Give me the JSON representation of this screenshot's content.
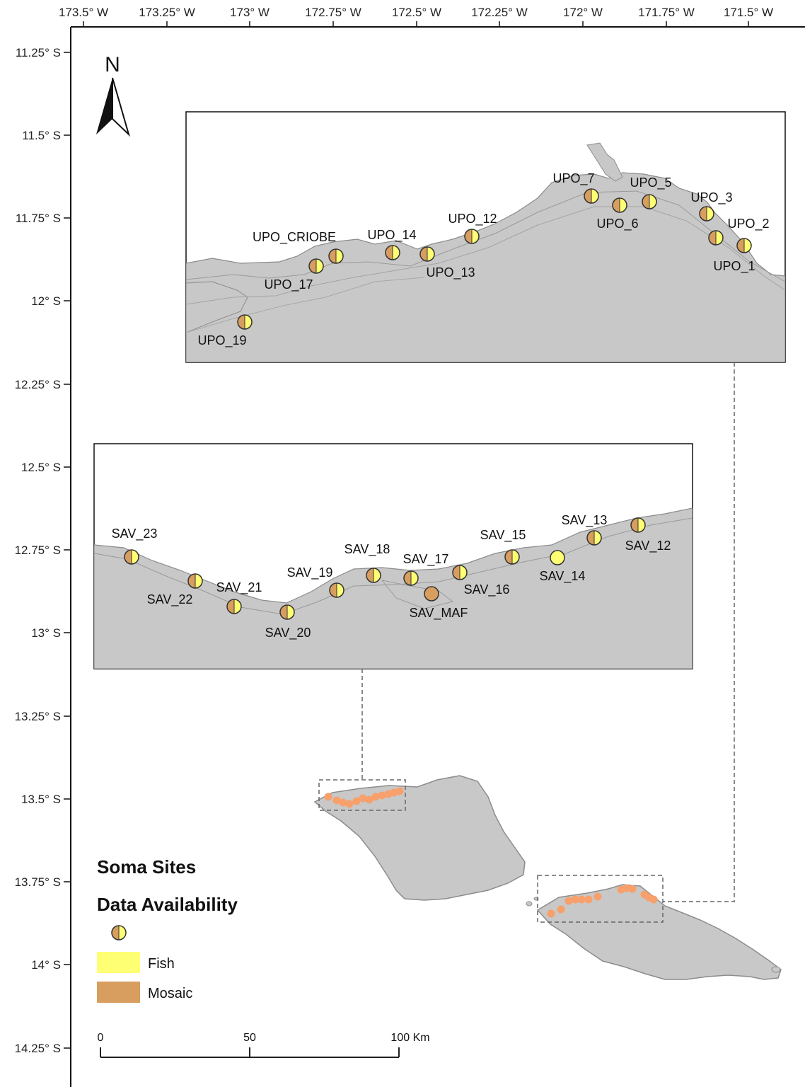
{
  "axes": {
    "x_ticks": [
      "173.5° W",
      "173.25° W",
      "173° W",
      "172.75° W",
      "172.5° W",
      "172.25° W",
      "172° W",
      "171.75° W",
      "171.5° W"
    ],
    "y_ticks": [
      "11.25° S",
      "11.5° S",
      "11.75° S",
      "12° S",
      "12.25° S",
      "12.5° S",
      "12.75° S",
      "13° S",
      "13.25° S",
      "13.5° S",
      "13.75° S",
      "14° S",
      "14.25° S"
    ]
  },
  "north_arrow": {
    "label": "N",
    "icon": "north-arrow-icon"
  },
  "upolu_inset": {
    "sites": [
      {
        "label": "UPO_7",
        "type": "both"
      },
      {
        "label": "UPO_5",
        "type": "both"
      },
      {
        "label": "UPO_3",
        "type": "both"
      },
      {
        "label": "UPO_6",
        "type": "both"
      },
      {
        "label": "UPO_2",
        "type": "both"
      },
      {
        "label": "UPO_12",
        "type": "both"
      },
      {
        "label": "UPO_CRIOBE",
        "type": "both"
      },
      {
        "label": "UPO_14",
        "type": "both"
      },
      {
        "label": "UPO_1",
        "type": "both"
      },
      {
        "label": "UPO_13",
        "type": "both"
      },
      {
        "label": "UPO_17",
        "type": "both"
      },
      {
        "label": "UPO_19",
        "type": "both"
      }
    ]
  },
  "savaii_inset": {
    "sites": [
      {
        "label": "SAV_23",
        "type": "both"
      },
      {
        "label": "SAV_22",
        "type": "both"
      },
      {
        "label": "SAV_21",
        "type": "both"
      },
      {
        "label": "SAV_20",
        "type": "both"
      },
      {
        "label": "SAV_19",
        "type": "both"
      },
      {
        "label": "SAV_18",
        "type": "both"
      },
      {
        "label": "SAV_17",
        "type": "both"
      },
      {
        "label": "SAV_MAF",
        "type": "mosaic"
      },
      {
        "label": "SAV_16",
        "type": "both"
      },
      {
        "label": "SAV_15",
        "type": "both"
      },
      {
        "label": "SAV_14",
        "type": "fish"
      },
      {
        "label": "SAV_13",
        "type": "both"
      },
      {
        "label": "SAV_12",
        "type": "both"
      }
    ]
  },
  "legend": {
    "title": "Soma Sites",
    "subtitle": "Data Availability",
    "items": [
      {
        "label": "Fish",
        "color": "#ffff73"
      },
      {
        "label": "Mosaic",
        "color": "#d79e5f"
      }
    ]
  },
  "scale_bar": {
    "labels": [
      "0",
      "50",
      "100 Km"
    ]
  },
  "colors": {
    "land": "#c8c8c8",
    "land_edge": "#8c8c8c",
    "fish": "#ffff73",
    "mosaic": "#d79e5f",
    "site_dot": "#f7a06b"
  }
}
